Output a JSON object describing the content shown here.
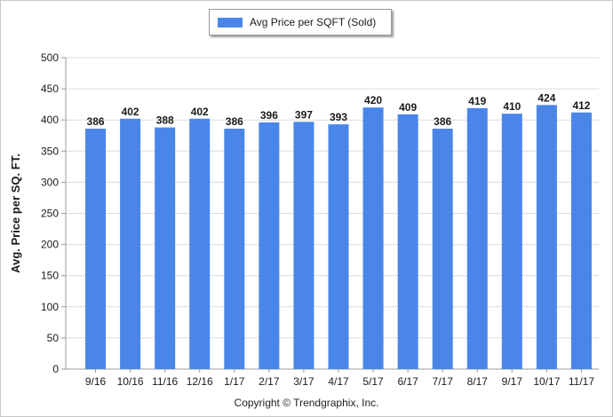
{
  "colors": {
    "bar": "#4a86e8",
    "grid": "#dcdcdc",
    "axis": "#9a9a9a",
    "text": "#1a1a1a"
  },
  "legend": {
    "label": "Avg Price per SQFT (Sold)"
  },
  "copyright": "Copyright © Trendgraphix, Inc.",
  "chart_data": {
    "type": "bar",
    "title": "",
    "xlabel": "",
    "ylabel": "Avg. Price per SQ. FT.",
    "ylim": [
      0,
      500
    ],
    "yticks": [
      0,
      50,
      100,
      150,
      200,
      250,
      300,
      350,
      400,
      450,
      500
    ],
    "grid": true,
    "legend_position": "top-center",
    "categories": [
      "9/16",
      "10/16",
      "11/16",
      "12/16",
      "1/17",
      "2/17",
      "3/17",
      "4/17",
      "5/17",
      "6/17",
      "7/17",
      "8/17",
      "9/17",
      "10/17",
      "11/17"
    ],
    "series": [
      {
        "name": "Avg Price per SQFT (Sold)",
        "values": [
          386,
          402,
          388,
          402,
          386,
          396,
          397,
          393,
          420,
          409,
          386,
          419,
          410,
          424,
          412
        ],
        "data_labels": true
      }
    ]
  }
}
